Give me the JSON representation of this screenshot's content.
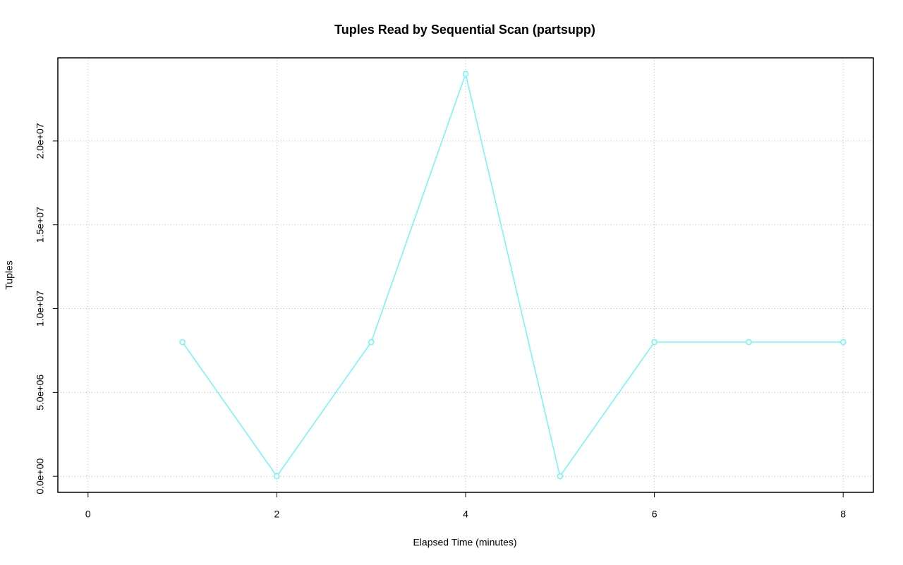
{
  "chart_data": {
    "type": "line",
    "title": "Tuples Read by Sequential Scan (partsupp)",
    "x_label": "Elapsed Time (minutes)",
    "y_label": "Tuples",
    "x": [
      1,
      2,
      3,
      4,
      5,
      6,
      7,
      8
    ],
    "series": [
      {
        "color": "#70f6f6",
        "values": [
          8000000,
          0,
          8000000,
          24000000,
          0,
          8000000,
          8000000,
          8000000
        ]
      }
    ],
    "xlim": [
      -0.32,
      8.32
    ],
    "ylim": [
      -960000,
      24960000
    ],
    "xticks": [
      0,
      2,
      4,
      6,
      8
    ],
    "yticks": [
      {
        "value": 0,
        "label": "0.0e+00"
      },
      {
        "value": 5000000,
        "label": "5.0e+06"
      },
      {
        "value": 10000000,
        "label": "1.0e+07"
      },
      {
        "value": 15000000,
        "label": "1.5e+07"
      },
      {
        "value": 20000000,
        "label": "2.0e+07"
      }
    ],
    "grid": true
  }
}
